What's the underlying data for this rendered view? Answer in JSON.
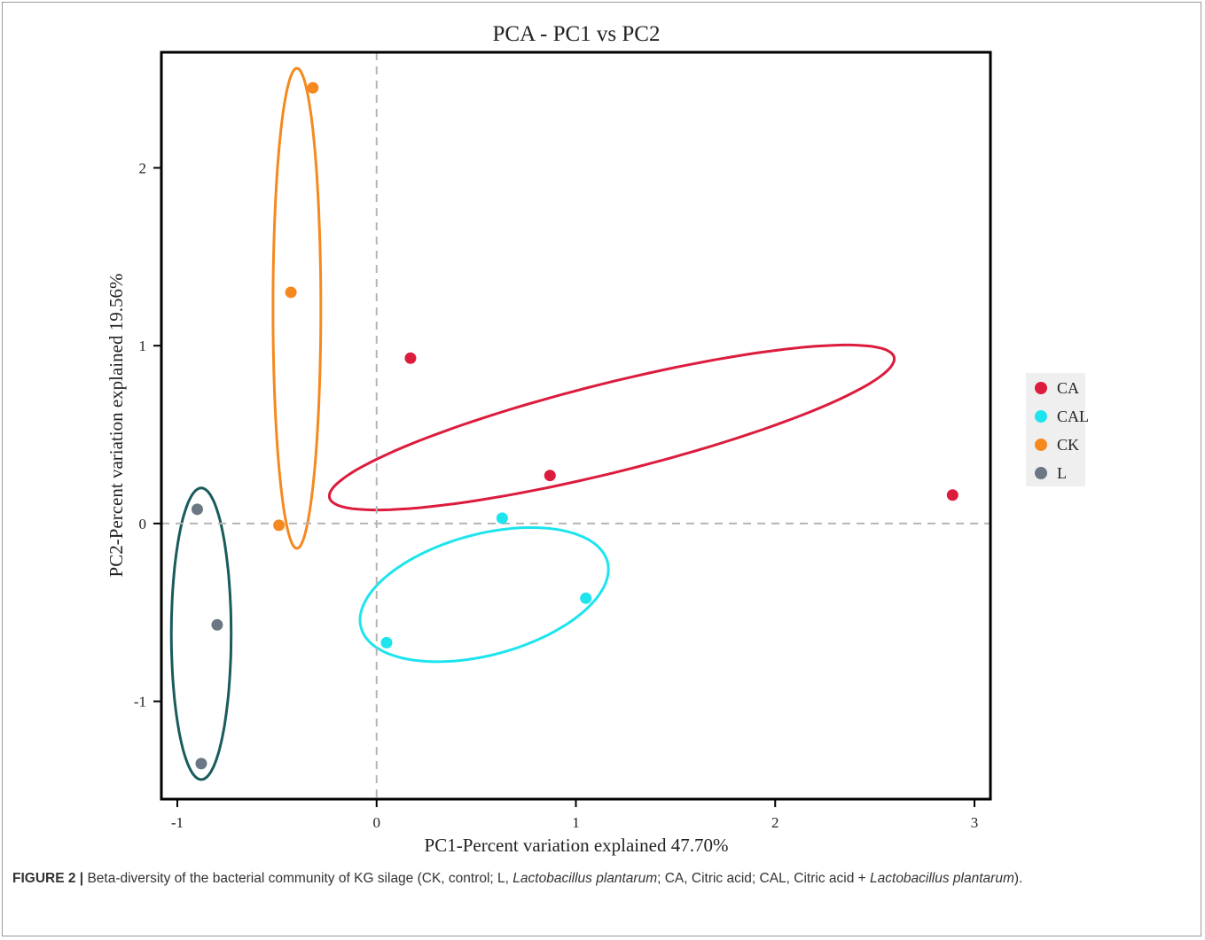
{
  "chart_data": {
    "type": "scatter",
    "title": "PCA - PC1 vs PC2",
    "xlabel": "PC1-Percent variation explained 47.70%",
    "ylabel": "PC2-Percent variation explained 19.56%",
    "xlim": [
      -1.08,
      3.08
    ],
    "ylim": [
      -1.55,
      2.65
    ],
    "x_ticks": [
      -1,
      0,
      1,
      2,
      3
    ],
    "y_ticks": [
      -1,
      0,
      1,
      2
    ],
    "x_tick_labels": [
      "-1",
      "0",
      "1",
      "2",
      "3"
    ],
    "y_tick_labels": [
      "-1",
      "0",
      "1",
      "2"
    ],
    "reference_lines": {
      "x": 0,
      "y": 0,
      "style": "dashed"
    },
    "legend_position": "right",
    "series": [
      {
        "name": "CA",
        "color": "#dc1c3c",
        "points": [
          [
            0.17,
            0.93
          ],
          [
            0.87,
            0.27
          ],
          [
            2.89,
            0.16
          ]
        ],
        "ellipse": {
          "cx": 1.18,
          "cy": 0.54,
          "rx": 1.46,
          "ry": 0.25,
          "angle_deg": 14
        }
      },
      {
        "name": "CAL",
        "color": "#1de4ee",
        "points": [
          [
            0.63,
            0.03
          ],
          [
            1.05,
            -0.42
          ],
          [
            0.05,
            -0.67
          ]
        ],
        "ellipse": {
          "cx": 0.54,
          "cy": -0.4,
          "rx": 0.64,
          "ry": 0.34,
          "angle_deg": 15
        }
      },
      {
        "name": "CK",
        "color": "#f5891f",
        "points": [
          [
            -0.32,
            2.45
          ],
          [
            -0.43,
            1.3
          ],
          [
            -0.49,
            -0.01
          ]
        ],
        "ellipse": {
          "cx": -0.4,
          "cy": 1.21,
          "rx": 0.12,
          "ry": 1.35,
          "angle_deg": 0
        }
      },
      {
        "name": "L",
        "color": "#6b7784",
        "points": [
          [
            -0.9,
            0.08
          ],
          [
            -0.8,
            -0.57
          ],
          [
            -0.88,
            -1.35
          ]
        ],
        "ellipse": {
          "cx": -0.88,
          "cy": -0.62,
          "rx": 0.15,
          "ry": 0.82,
          "angle_deg": 0
        },
        "ellipse_color": "#1a5b5c"
      }
    ]
  },
  "caption": {
    "label": "FIGURE 2 |",
    "p1": " Beta-diversity of the bacterial community of KG silage (CK, control; L, ",
    "i1": "Lactobacillus plantarum",
    "p2": "; CA, Citric acid; CAL, Citric acid + ",
    "i2": "Lactobacillus plantarum",
    "p3": ")."
  }
}
